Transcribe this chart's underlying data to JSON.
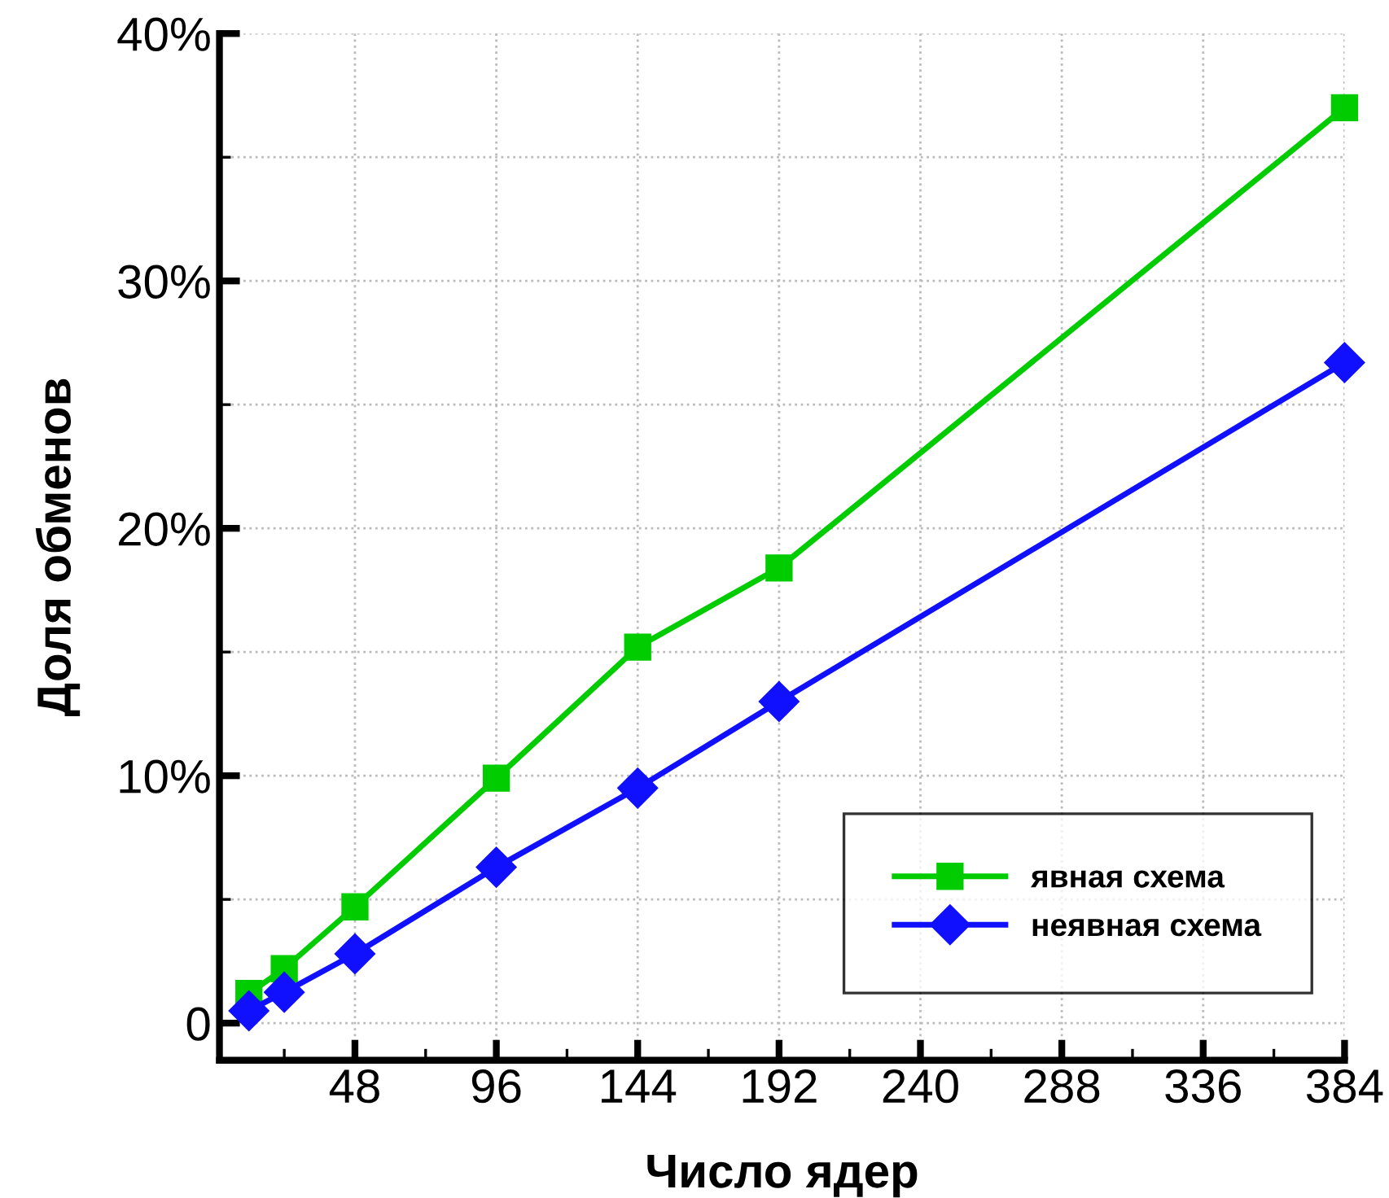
{
  "chart_data": {
    "type": "line",
    "xlabel": "Число ядер",
    "ylabel": "Доля обменов",
    "x": [
      12,
      24,
      48,
      96,
      144,
      192,
      384
    ],
    "series": [
      {
        "name": "явная схема",
        "color": "#00cc00",
        "marker": "square",
        "values": [
          1.2,
          2.2,
          4.7,
          9.9,
          15.2,
          18.4,
          37.0
        ]
      },
      {
        "name": "неявная схема",
        "color": "#1010ff",
        "marker": "diamond",
        "values": [
          0.5,
          1.25,
          2.8,
          6.3,
          9.5,
          13.0,
          26.7
        ]
      }
    ],
    "xlim": [
      2,
      384
    ],
    "xticks": [
      {
        "value": 24,
        "label": null
      },
      48,
      {
        "value": 72,
        "label": null
      },
      96,
      {
        "value": 120,
        "label": null
      },
      144,
      {
        "value": 168,
        "label": null
      },
      192,
      {
        "value": 216,
        "label": null
      },
      240,
      {
        "value": 264,
        "label": null
      },
      288,
      {
        "value": 312,
        "label": null
      },
      336,
      {
        "value": 360,
        "label": null
      },
      384
    ],
    "ylim": [
      -1.5,
      40
    ],
    "yticks": [
      0,
      {
        "value": 5,
        "label": null
      },
      {
        "value": 10,
        "label": "10%"
      },
      {
        "value": 15,
        "label": null
      },
      {
        "value": 20,
        "label": "20%"
      },
      {
        "value": 25,
        "label": null
      },
      {
        "value": 30,
        "label": "30%"
      },
      {
        "value": 35,
        "label": null
      },
      {
        "value": 40,
        "label": "40%"
      }
    ],
    "grid": true,
    "legend": "bottom right",
    "line_style": "solid"
  }
}
